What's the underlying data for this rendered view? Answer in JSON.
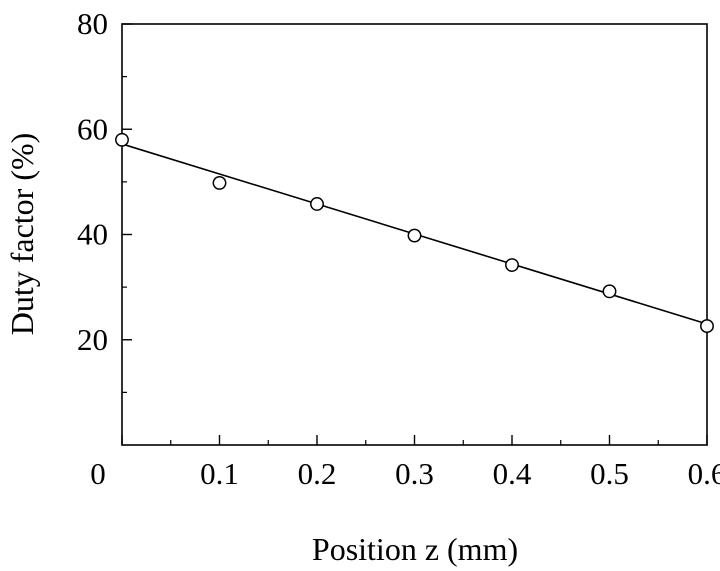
{
  "chart_data": {
    "type": "scatter",
    "title": "",
    "xlabel": "Position z (mm)",
    "ylabel": "Duty factor (%)",
    "xlim": [
      0,
      0.6
    ],
    "ylim": [
      0,
      80
    ],
    "x_ticks": [
      0,
      0.1,
      0.2,
      0.3,
      0.4,
      0.5,
      0.6
    ],
    "x_tick_labels": [
      "0",
      "0.1",
      "0.2",
      "0.3",
      "0.4",
      "0.5",
      "0.6"
    ],
    "y_ticks": [
      20,
      40,
      60,
      80
    ],
    "y_tick_labels": [
      "20",
      "40",
      "60",
      "80"
    ],
    "x_minor_step": 0.05,
    "y_minor_step": 10,
    "grid": false,
    "legend": "none",
    "series": [
      {
        "marker": "open-circle",
        "x": [
          0.0,
          0.1,
          0.2,
          0.3,
          0.4,
          0.5,
          0.6
        ],
        "y": [
          58,
          49.8,
          45.8,
          39.8,
          34.2,
          29.2,
          22.6
        ]
      }
    ],
    "fit_line": {
      "x": [
        0.0,
        0.6
      ],
      "y": [
        57.2,
        23.0
      ]
    },
    "colors": {
      "stroke": "#000000",
      "marker_fill": "#ffffff"
    }
  }
}
